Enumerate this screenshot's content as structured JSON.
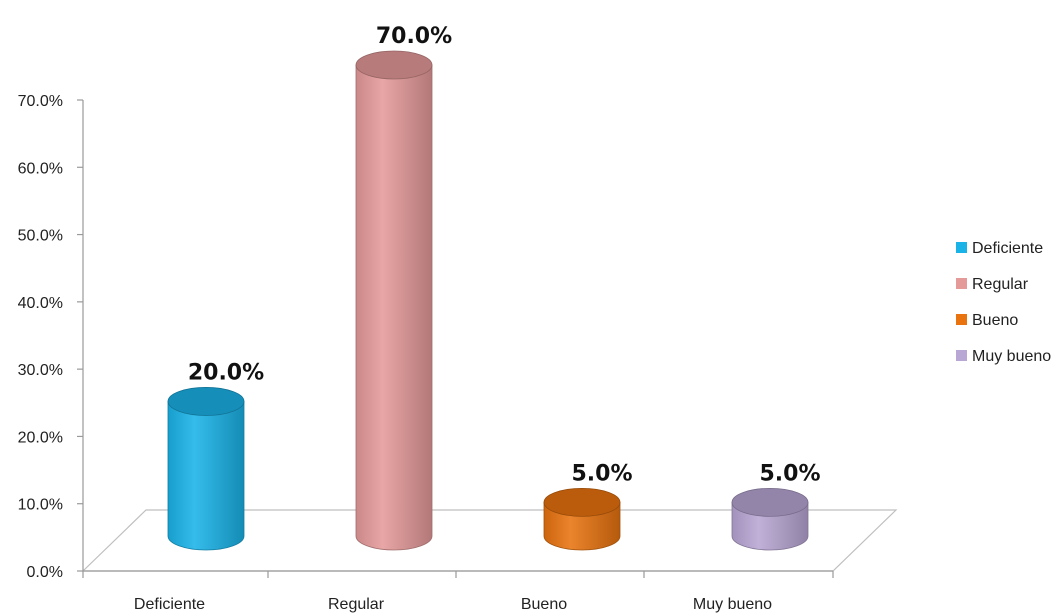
{
  "chart_data": {
    "type": "bar",
    "categories": [
      "Deficiente",
      "Regular",
      "Bueno",
      "Muy bueno"
    ],
    "values": [
      20.0,
      70.0,
      5.0,
      5.0
    ],
    "data_labels": [
      "20.0%",
      "70.0%",
      "5.0%",
      "5.0%"
    ],
    "colors": [
      "#1AB3E8",
      "#E59A9A",
      "#E8730F",
      "#B8A6D4"
    ],
    "ylim": [
      0,
      70
    ],
    "yticks": [
      "0.0%",
      "10.0%",
      "20.0%",
      "30.0%",
      "40.0%",
      "50.0%",
      "60.0%",
      "70.0%"
    ],
    "legend": [
      "Deficiente",
      "Regular",
      "Bueno",
      "Muy bueno"
    ],
    "legend_position": "right",
    "style": "3d-cylinder",
    "title": "",
    "xlabel": "",
    "ylabel": "",
    "grid": false
  }
}
